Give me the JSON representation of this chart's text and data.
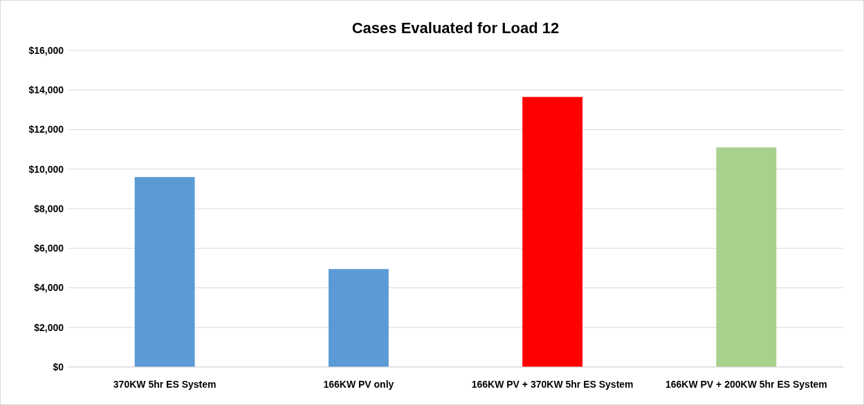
{
  "chart_data": {
    "type": "bar",
    "title": "Cases Evaluated for Load 12",
    "categories": [
      "370KW 5hr ES System",
      "166KW PV only",
      "166KW PV + 370KW 5hr ES System",
      "166KW PV + 200KW 5hr ES System"
    ],
    "values": [
      9600,
      4950,
      13650,
      11100
    ],
    "colors": [
      "#5b9bd5",
      "#5b9bd5",
      "#ff0000",
      "#a9d18e"
    ],
    "ylim": [
      0,
      16000
    ],
    "yticks": [
      {
        "value": 0,
        "label": "$0"
      },
      {
        "value": 2000,
        "label": "$2,000"
      },
      {
        "value": 4000,
        "label": "$4,000"
      },
      {
        "value": 6000,
        "label": "$6,000"
      },
      {
        "value": 8000,
        "label": "$8,000"
      },
      {
        "value": 10000,
        "label": "$10,000"
      },
      {
        "value": 12000,
        "label": "$12,000"
      },
      {
        "value": 14000,
        "label": "$14,000"
      },
      {
        "value": 16000,
        "label": "$16,000"
      }
    ],
    "grid": "y"
  }
}
